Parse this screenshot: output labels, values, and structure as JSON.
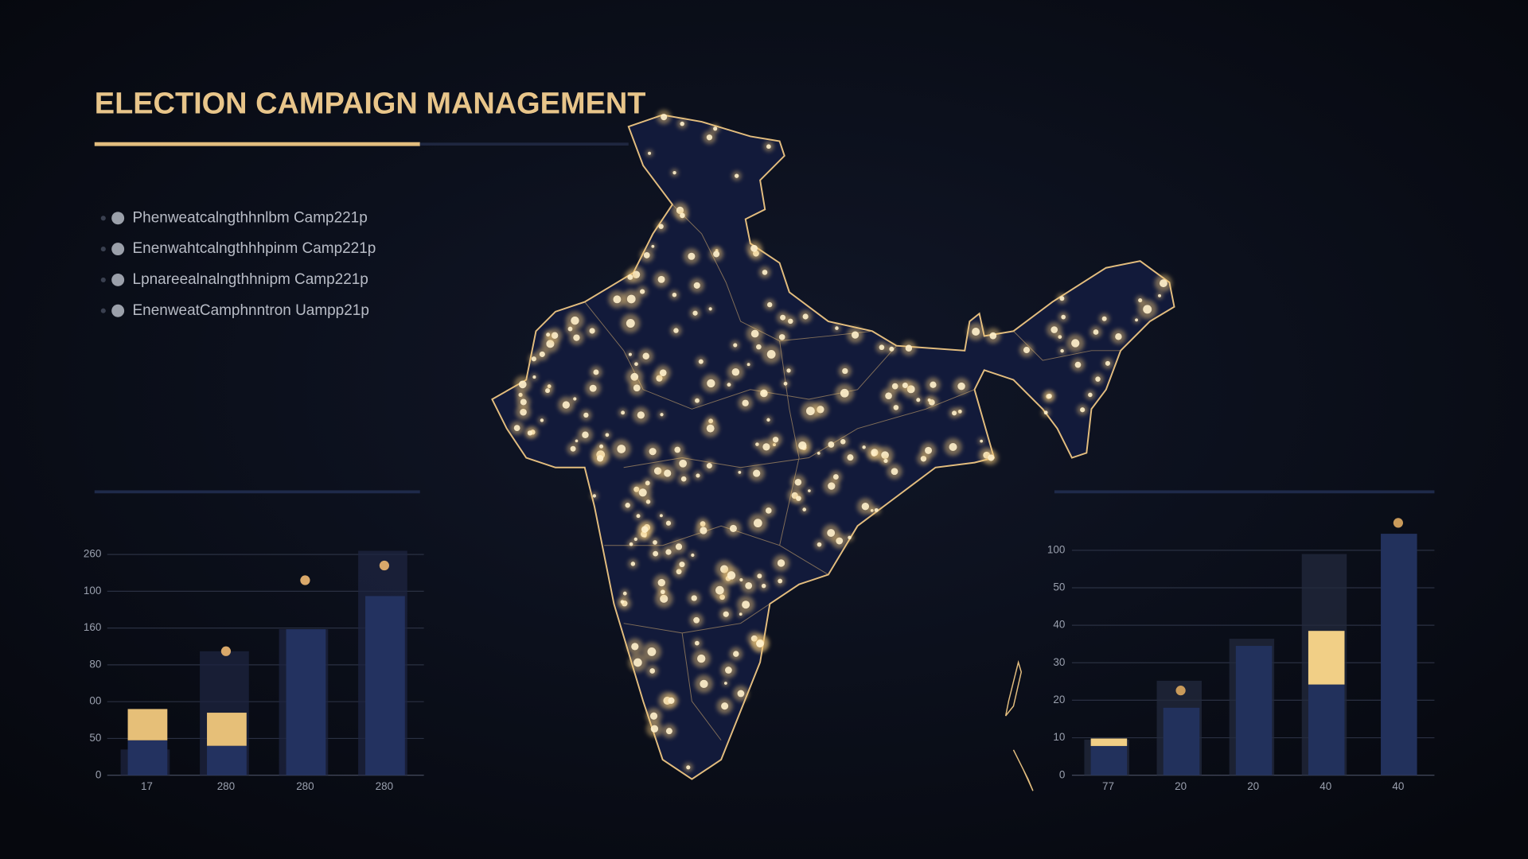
{
  "header": {
    "title": "ELECTION CAMPAIGN MANAGEMENT"
  },
  "bullets": [
    "Phenweatcalngthhnlbm Camp221p",
    "Enenwahtcalngthhhpinm Camp221p",
    "Lpnareealnalngthhnipm Camp221p",
    "EnenweatCamphnntron Uampp21p"
  ],
  "charts": [
    {
      "type": "bar",
      "categories": [
        "17",
        "280",
        "280",
        "280"
      ],
      "ylim": [
        0,
        6.3
      ],
      "yticks": [
        {
          "value": 0,
          "label": "0"
        },
        {
          "value": 1,
          "label": "50"
        },
        {
          "value": 2,
          "label": "00"
        },
        {
          "value": 3,
          "label": "80"
        },
        {
          "value": 4,
          "label": "160"
        },
        {
          "value": 5,
          "label": "100"
        },
        {
          "value": 6,
          "label": "260"
        }
      ],
      "grid": true,
      "series": [
        {
          "kind": "backdrop",
          "color": "#1d2440",
          "values": [
            0.7,
            3.37,
            3.97,
            6.1
          ]
        },
        {
          "kind": "bar",
          "color": "#233260",
          "values": [
            0.95,
            0.8,
            3.97,
            4.87
          ]
        },
        {
          "kind": "stack",
          "color": "#e6bf78",
          "values": [
            0.85,
            0.9,
            null,
            null
          ]
        },
        {
          "kind": "dot",
          "color": "#d9a86a",
          "values": [
            null,
            3.37,
            5.3,
            5.7
          ]
        }
      ]
    },
    {
      "type": "bar",
      "categories": [
        "77",
        "20",
        "20",
        "40",
        "40"
      ],
      "ylim": [
        0,
        7
      ],
      "yticks": [
        {
          "value": 0,
          "label": "0"
        },
        {
          "value": 1,
          "label": "10"
        },
        {
          "value": 2,
          "label": "20"
        },
        {
          "value": 3,
          "label": "30"
        },
        {
          "value": 4,
          "label": "40"
        },
        {
          "value": 5,
          "label": "50"
        },
        {
          "value": 6,
          "label": "100"
        }
      ],
      "grid": true,
      "series": [
        {
          "kind": "backdrop",
          "color": "#232a3e",
          "values": [
            0.95,
            2.52,
            3.64,
            5.9,
            null
          ]
        },
        {
          "kind": "bar",
          "color": "#22315c",
          "values": [
            0.78,
            1.8,
            3.45,
            2.42,
            6.44
          ]
        },
        {
          "kind": "stack",
          "color": "#f1cf86",
          "values": [
            0.2,
            null,
            null,
            1.43,
            null
          ]
        },
        {
          "kind": "dot",
          "color": "#c99a5a",
          "values": [
            null,
            2.26,
            null,
            null,
            6.73
          ]
        }
      ]
    }
  ]
}
